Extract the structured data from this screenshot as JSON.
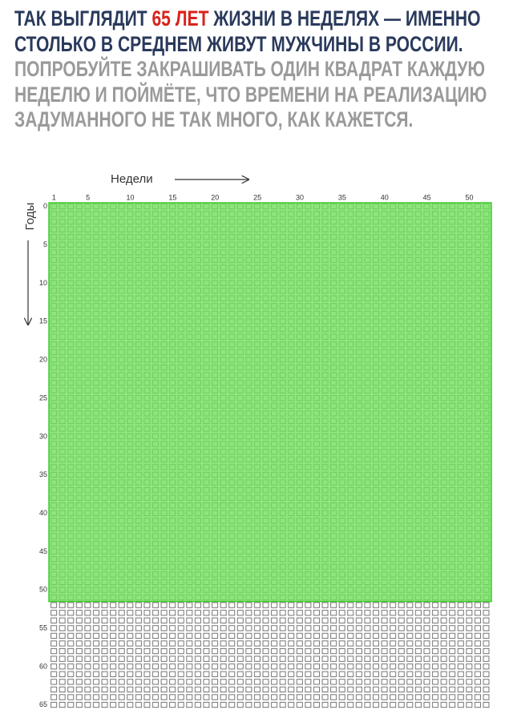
{
  "header": {
    "part1": "ТАК ВЫГЛЯДИТ ",
    "highlight": "65 ЛЕТ",
    "part2": " ЖИЗНИ В НЕДЕЛЯХ — ИМЕННО СТОЛЬКО В СРЕДНЕМ ЖИВУТ МУЖЧИНЫ В РОССИИ.",
    "part3": " ПОПРОБУЙТЕ ЗАКРАШИВАТЬ ОДИН КВАДРАТ КАЖДУЮ НЕДЕЛЮ И ПОЙМЁТЕ, ЧТО ВРЕМЕНИ НА РЕАЛИЗАЦИЮ ЗАДУМАННОГО НЕ ТАК МНОГО, КАК КАЖЕТСЯ."
  },
  "grid": {
    "x_label": "Недели",
    "y_label": "Годы",
    "columns": 52,
    "rows": 66,
    "filled_rows": 52,
    "xticks": [
      1,
      5,
      10,
      15,
      20,
      25,
      30,
      35,
      40,
      45,
      50
    ],
    "yticks": [
      0,
      5,
      10,
      15,
      20,
      25,
      30,
      35,
      40,
      45,
      50,
      55,
      60,
      65
    ]
  }
}
